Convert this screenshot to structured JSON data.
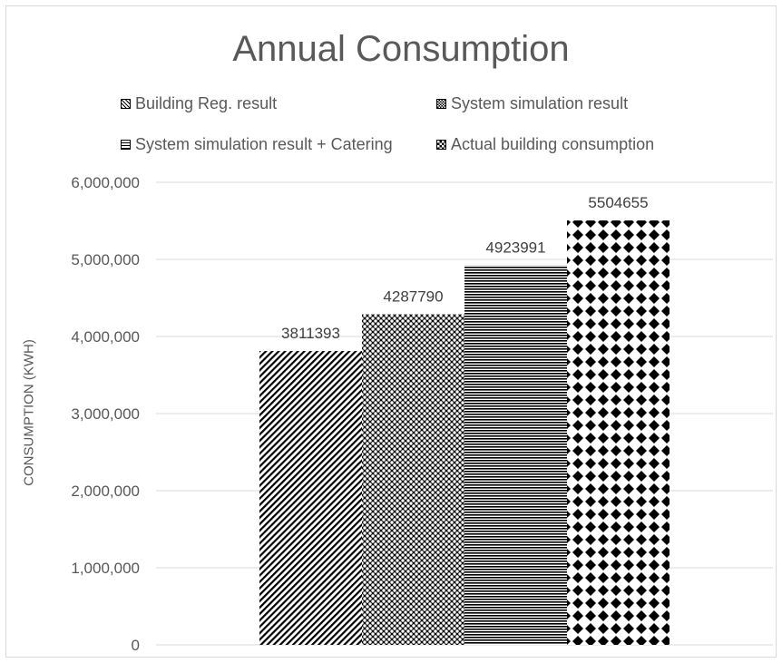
{
  "chart_data": {
    "type": "bar",
    "title": "Annual Consumption",
    "xlabel": "",
    "ylabel": "CONSUMPTION (KWH)",
    "ylim": [
      0,
      6000000
    ],
    "y_ticks": [
      "0",
      "1,000,000",
      "2,000,000",
      "3,000,000",
      "4,000,000",
      "5,000,000",
      "6,000,000"
    ],
    "grid": true,
    "legend_position": "top",
    "series": [
      {
        "name": "Building Reg. result",
        "values": [
          3811393
        ],
        "label": "3811393",
        "pattern": "diagonal"
      },
      {
        "name": "System simulation result",
        "values": [
          4287790
        ],
        "label": "4287790",
        "pattern": "checker"
      },
      {
        "name": "System simulation result + Catering",
        "values": [
          4923991
        ],
        "label": "4923991",
        "pattern": "horizontal"
      },
      {
        "name": "Actual building consumption",
        "values": [
          5504655
        ],
        "label": "5504655",
        "pattern": "diamond"
      }
    ]
  }
}
